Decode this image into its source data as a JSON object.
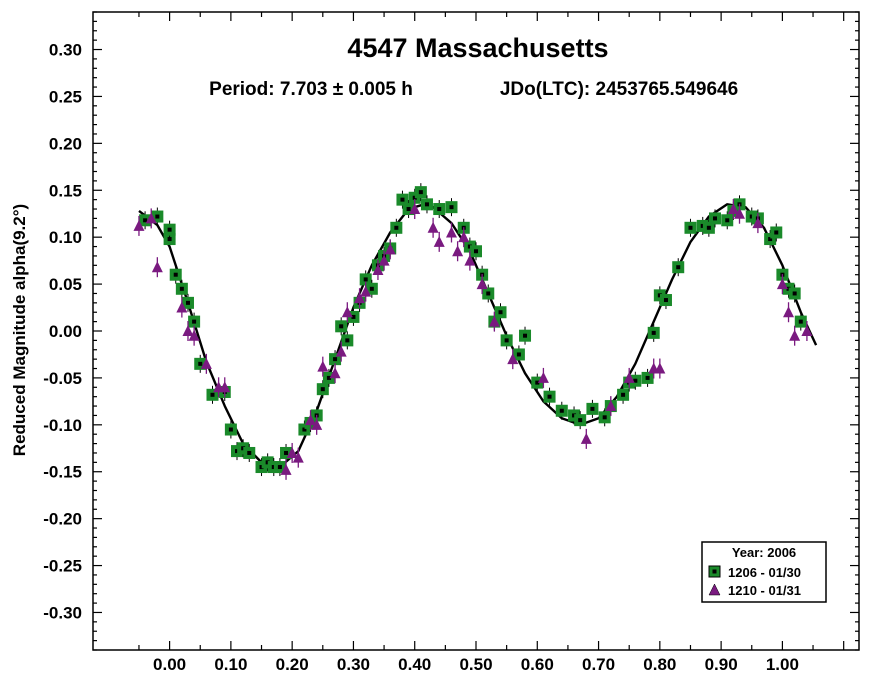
{
  "chart_data": {
    "type": "scatter",
    "title": "4547 Massachusetts",
    "subtitle_period": "Period: 7.703 ± 0.005 h",
    "subtitle_epoch": "JDo(LTC): 2453765.549646",
    "xlabel": "",
    "ylabel": "Reduced Magnitude alpha(9.2°)",
    "xlim": [
      -0.125,
      1.125
    ],
    "ylim": [
      0.34,
      -0.34
    ],
    "y_inverted": true,
    "x_ticks": [
      0.0,
      0.1,
      0.2,
      0.3,
      0.4,
      0.5,
      0.6,
      0.7,
      0.8,
      0.9,
      1.0
    ],
    "x_tick_labels": [
      "0.00",
      "0.10",
      "0.20",
      "0.30",
      "0.40",
      "0.50",
      "0.60",
      "0.70",
      "0.80",
      "0.90",
      "1.00"
    ],
    "y_ticks": [
      -0.3,
      -0.25,
      -0.2,
      -0.15,
      -0.1,
      -0.05,
      0.0,
      0.05,
      0.1,
      0.15,
      0.2,
      0.25,
      0.3
    ],
    "y_tick_labels": [
      "-0.30",
      "-0.25",
      "-0.20",
      "-0.15",
      "-0.10",
      "-0.05",
      "0.00",
      "0.05",
      "0.10",
      "0.15",
      "0.20",
      "0.25",
      "0.30"
    ],
    "legend": {
      "placement": "bottom-right",
      "title": "Year: 2006",
      "entries": [
        "1206 - 01/30",
        "1210 - 01/31"
      ]
    },
    "series": [
      {
        "name": "1206 - 01/30",
        "marker": "square",
        "color": "#1a8a2a",
        "points": [
          [
            -0.04,
            0.118
          ],
          [
            -0.02,
            0.122
          ],
          [
            0.0,
            0.098
          ],
          [
            0.0,
            0.108
          ],
          [
            0.01,
            0.06
          ],
          [
            0.02,
            0.045
          ],
          [
            0.03,
            0.03
          ],
          [
            0.04,
            0.01
          ],
          [
            0.05,
            -0.035
          ],
          [
            0.07,
            -0.068
          ],
          [
            0.09,
            -0.065
          ],
          [
            0.1,
            -0.105
          ],
          [
            0.11,
            -0.128
          ],
          [
            0.12,
            -0.125
          ],
          [
            0.13,
            -0.13
          ],
          [
            0.15,
            -0.145
          ],
          [
            0.16,
            -0.14
          ],
          [
            0.17,
            -0.145
          ],
          [
            0.18,
            -0.145
          ],
          [
            0.19,
            -0.13
          ],
          [
            0.22,
            -0.105
          ],
          [
            0.23,
            -0.098
          ],
          [
            0.24,
            -0.09
          ],
          [
            0.25,
            -0.062
          ],
          [
            0.26,
            -0.05
          ],
          [
            0.27,
            -0.03
          ],
          [
            0.28,
            0.005
          ],
          [
            0.29,
            -0.01
          ],
          [
            0.3,
            0.015
          ],
          [
            0.31,
            0.03
          ],
          [
            0.32,
            0.055
          ],
          [
            0.33,
            0.045
          ],
          [
            0.34,
            0.07
          ],
          [
            0.35,
            0.08
          ],
          [
            0.36,
            0.088
          ],
          [
            0.37,
            0.11
          ],
          [
            0.38,
            0.14
          ],
          [
            0.39,
            0.13
          ],
          [
            0.4,
            0.142
          ],
          [
            0.41,
            0.148
          ],
          [
            0.42,
            0.135
          ],
          [
            0.44,
            0.13
          ],
          [
            0.46,
            0.132
          ],
          [
            0.48,
            0.11
          ],
          [
            0.49,
            0.09
          ],
          [
            0.5,
            0.085
          ],
          [
            0.51,
            0.06
          ],
          [
            0.52,
            0.04
          ],
          [
            0.53,
            0.01
          ],
          [
            0.54,
            0.02
          ],
          [
            0.55,
            -0.01
          ],
          [
            0.57,
            -0.025
          ],
          [
            0.58,
            -0.005
          ],
          [
            0.6,
            -0.055
          ],
          [
            0.62,
            -0.07
          ],
          [
            0.64,
            -0.085
          ],
          [
            0.66,
            -0.09
          ],
          [
            0.67,
            -0.095
          ],
          [
            0.69,
            -0.083
          ],
          [
            0.71,
            -0.092
          ],
          [
            0.72,
            -0.08
          ],
          [
            0.74,
            -0.068
          ],
          [
            0.75,
            -0.055
          ],
          [
            0.76,
            -0.053
          ],
          [
            0.78,
            -0.05
          ],
          [
            0.79,
            -0.002
          ],
          [
            0.8,
            0.038
          ],
          [
            0.81,
            0.033
          ],
          [
            0.83,
            0.068
          ],
          [
            0.85,
            0.11
          ],
          [
            0.87,
            0.112
          ],
          [
            0.88,
            0.11
          ],
          [
            0.89,
            0.12
          ],
          [
            0.91,
            0.118
          ],
          [
            0.92,
            0.128
          ],
          [
            0.93,
            0.135
          ],
          [
            0.95,
            0.122
          ],
          [
            0.96,
            0.12
          ],
          [
            0.98,
            0.098
          ],
          [
            0.99,
            0.105
          ],
          [
            1.0,
            0.06
          ],
          [
            1.01,
            0.045
          ],
          [
            1.02,
            0.04
          ],
          [
            1.03,
            0.01
          ]
        ]
      },
      {
        "name": "1210 - 01/31",
        "marker": "triangle",
        "color": "#7a1a80",
        "points": [
          [
            -0.05,
            0.112
          ],
          [
            -0.03,
            0.12
          ],
          [
            -0.02,
            0.068
          ],
          [
            0.02,
            0.025
          ],
          [
            0.03,
            0.0
          ],
          [
            0.04,
            -0.005
          ],
          [
            0.06,
            -0.035
          ],
          [
            0.08,
            -0.06
          ],
          [
            0.09,
            -0.06
          ],
          [
            0.19,
            -0.148
          ],
          [
            0.2,
            -0.13
          ],
          [
            0.21,
            -0.135
          ],
          [
            0.23,
            -0.095
          ],
          [
            0.24,
            -0.1
          ],
          [
            0.25,
            -0.038
          ],
          [
            0.27,
            -0.045
          ],
          [
            0.28,
            -0.022
          ],
          [
            0.29,
            0.02
          ],
          [
            0.31,
            0.035
          ],
          [
            0.32,
            0.042
          ],
          [
            0.34,
            0.065
          ],
          [
            0.35,
            0.075
          ],
          [
            0.36,
            0.087
          ],
          [
            0.4,
            0.13
          ],
          [
            0.43,
            0.11
          ],
          [
            0.44,
            0.095
          ],
          [
            0.46,
            0.105
          ],
          [
            0.47,
            0.085
          ],
          [
            0.48,
            0.1
          ],
          [
            0.49,
            0.075
          ],
          [
            0.51,
            0.05
          ],
          [
            0.53,
            0.01
          ],
          [
            0.56,
            -0.03
          ],
          [
            0.61,
            -0.05
          ],
          [
            0.68,
            -0.115
          ],
          [
            0.72,
            -0.08
          ],
          [
            0.75,
            -0.05
          ],
          [
            0.79,
            -0.04
          ],
          [
            0.8,
            -0.04
          ],
          [
            0.92,
            0.13
          ],
          [
            0.93,
            0.125
          ],
          [
            0.96,
            0.115
          ],
          [
            1.0,
            0.05
          ],
          [
            1.01,
            0.02
          ],
          [
            1.02,
            -0.005
          ],
          [
            1.04,
            0.0
          ]
        ]
      },
      {
        "name": "fit",
        "type": "line",
        "color": "#000000",
        "points": [
          [
            -0.05,
            0.128
          ],
          [
            -0.02,
            0.113
          ],
          [
            0.0,
            0.09
          ],
          [
            0.03,
            0.03
          ],
          [
            0.06,
            -0.033
          ],
          [
            0.09,
            -0.08
          ],
          [
            0.12,
            -0.12
          ],
          [
            0.15,
            -0.14
          ],
          [
            0.18,
            -0.145
          ],
          [
            0.21,
            -0.128
          ],
          [
            0.24,
            -0.085
          ],
          [
            0.27,
            -0.03
          ],
          [
            0.3,
            0.025
          ],
          [
            0.33,
            0.07
          ],
          [
            0.36,
            0.105
          ],
          [
            0.39,
            0.13
          ],
          [
            0.41,
            0.134
          ],
          [
            0.43,
            0.132
          ],
          [
            0.46,
            0.115
          ],
          [
            0.49,
            0.085
          ],
          [
            0.52,
            0.04
          ],
          [
            0.55,
            -0.005
          ],
          [
            0.58,
            -0.045
          ],
          [
            0.61,
            -0.075
          ],
          [
            0.64,
            -0.093
          ],
          [
            0.67,
            -0.1
          ],
          [
            0.7,
            -0.093
          ],
          [
            0.73,
            -0.07
          ],
          [
            0.76,
            -0.035
          ],
          [
            0.79,
            0.01
          ],
          [
            0.82,
            0.055
          ],
          [
            0.85,
            0.095
          ],
          [
            0.88,
            0.122
          ],
          [
            0.91,
            0.135
          ],
          [
            0.94,
            0.132
          ],
          [
            0.97,
            0.11
          ],
          [
            1.0,
            0.07
          ],
          [
            1.03,
            0.02
          ],
          [
            1.055,
            -0.015
          ]
        ]
      }
    ]
  }
}
